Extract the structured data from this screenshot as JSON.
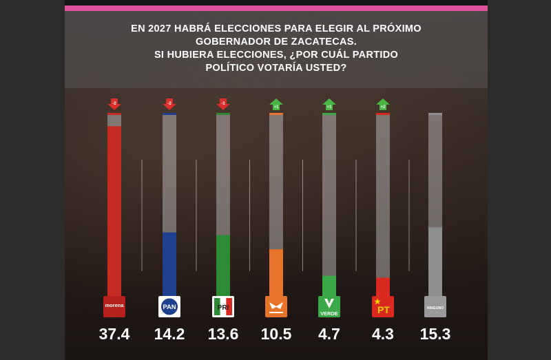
{
  "title": {
    "line1": "EN 2027 HABRÁ ELECCIONES PARA ELEGIR AL PRÓXIMO",
    "line2": "GOBERNADOR DE ZACATECAS.",
    "line3": "SI HUBIERA ELECCIONES, ¿POR CUÁL PARTIDO",
    "line4": "POLÍTICO VOTARÍA USTED?"
  },
  "colors": {
    "accent_stripe": "#e0529a",
    "increase_arrow": "#4bb543",
    "decrease_arrow": "#d9302b"
  },
  "chart_data": {
    "type": "bar",
    "title": "EN 2027 HABRÁ ELECCIONES PARA ELEGIR AL PRÓXIMO GOBERNADOR DE ZACATECAS. SI HOY FUERAN ELECCIONES, ¿POR CUÁL PARTIDO POLÍTICO VOTARÍA USTED?",
    "xlabel": "",
    "ylabel": "",
    "ylim": [
      0,
      40
    ],
    "grid": false,
    "legend": "none",
    "categories": [
      "morena",
      "PAN",
      "PRI",
      "Movimiento Ciudadano",
      "VERDE",
      "PT",
      "NINGUNO"
    ],
    "values": [
      37.4,
      14.2,
      13.6,
      10.5,
      4.7,
      4.3,
      15.3
    ],
    "value_labels": [
      "37.4",
      "14.2",
      "13.6",
      "10.5",
      "4.7",
      "4.3",
      "15.3"
    ],
    "changes": [
      "-2",
      "-2",
      "-1",
      "+1",
      "+1",
      "+2",
      null
    ],
    "bar_colors": [
      "#c62b23",
      "#1f3f8f",
      "#2e8b35",
      "#e8742a",
      "#3aa847",
      "#d8281f",
      "#8e8e8e"
    ],
    "parties": [
      {
        "logo_text": "morena",
        "logo_icon": "morena-logo"
      },
      {
        "logo_text": "PAN",
        "logo_icon": "pan-logo"
      },
      {
        "logo_text": "PRI",
        "logo_icon": "pri-logo"
      },
      {
        "logo_text": "",
        "logo_icon": "movimiento-ciudadano-logo"
      },
      {
        "logo_text": "VERDE",
        "logo_icon": "verde-logo"
      },
      {
        "logo_text": "PT",
        "logo_icon": "pt-logo"
      },
      {
        "logo_text": "NINGUNO",
        "logo_icon": "ninguno-badge"
      }
    ]
  }
}
